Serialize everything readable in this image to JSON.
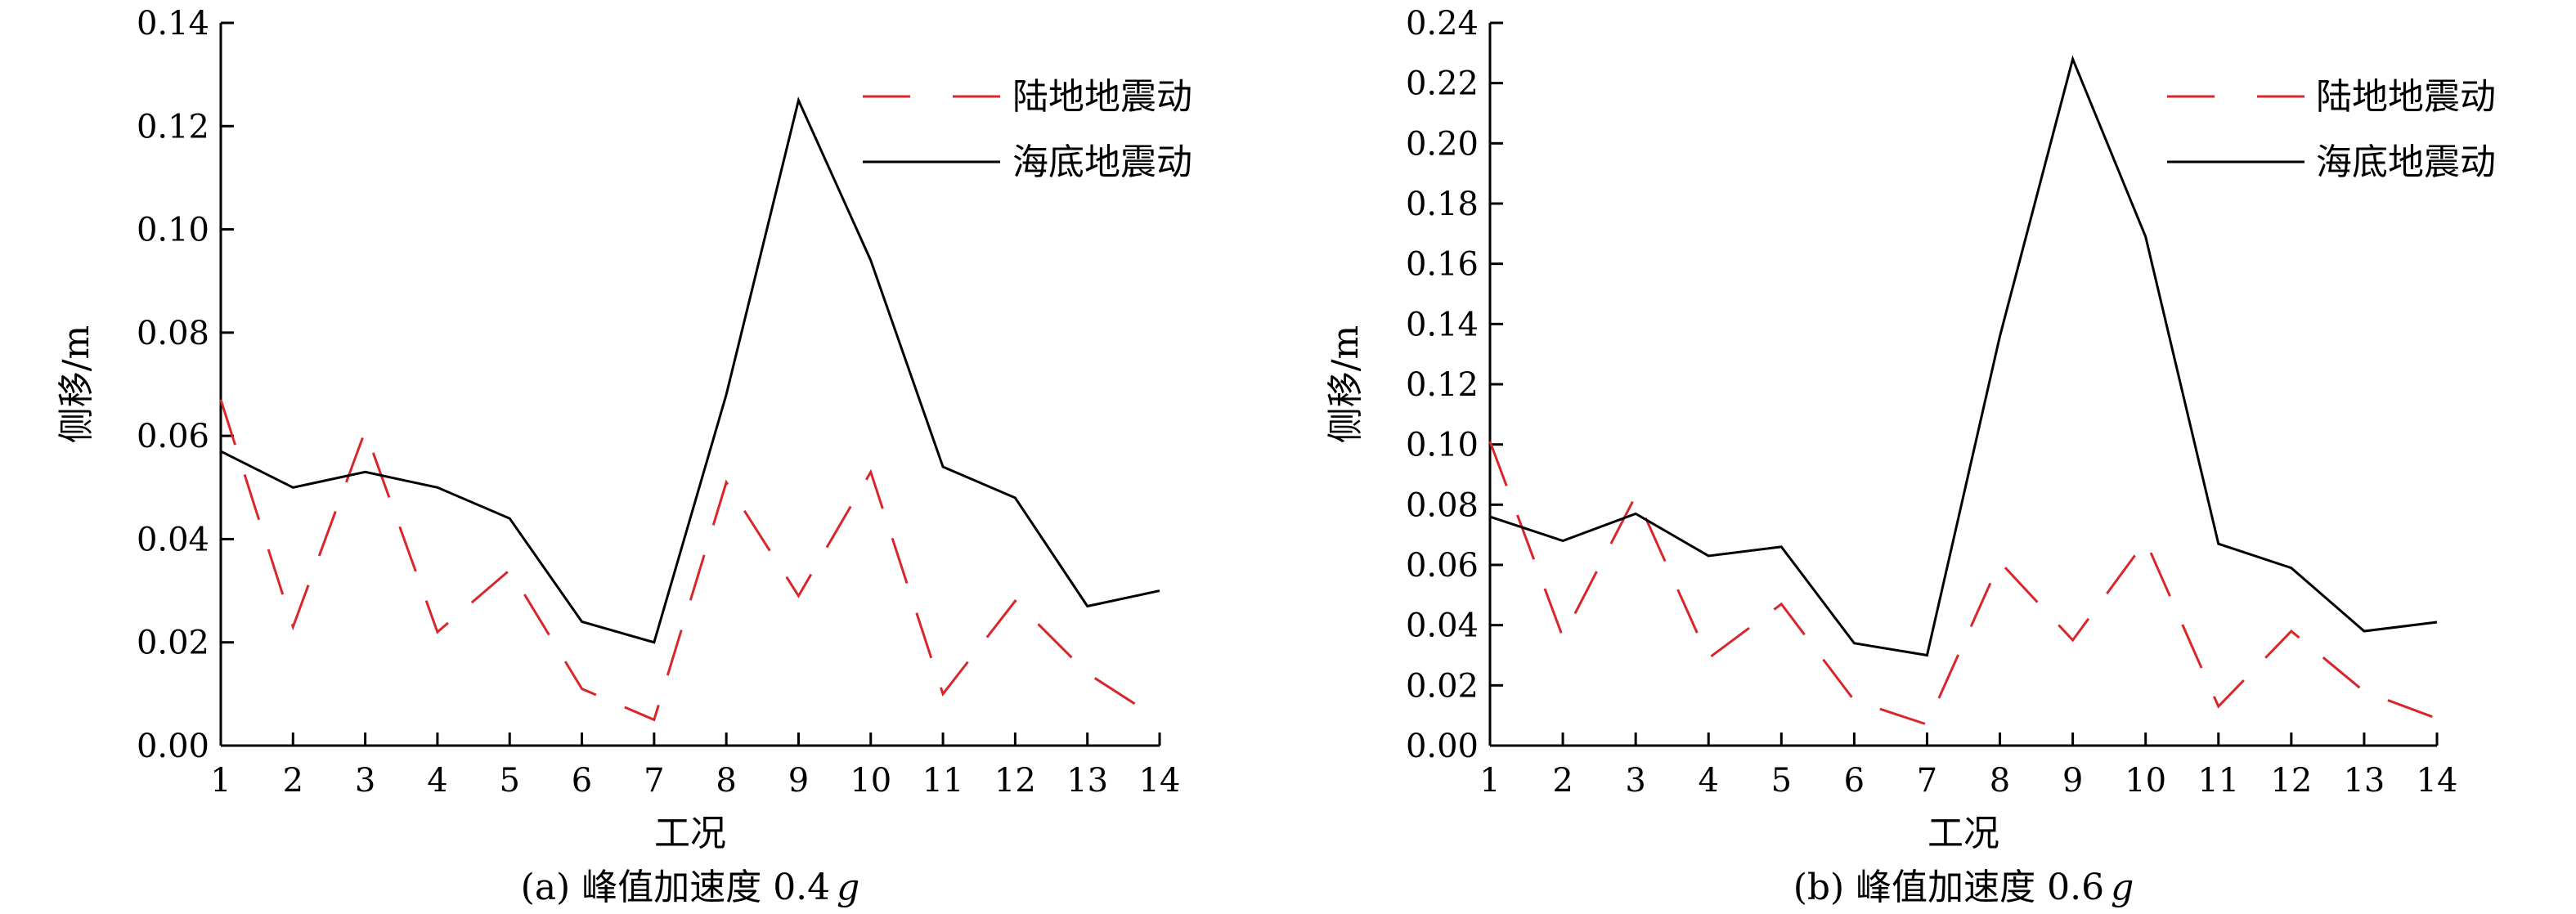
{
  "chart_data": [
    {
      "type": "line",
      "caption": "(a) 峰值加速度 0.4",
      "caption_italic": "g",
      "xlabel": "工况",
      "ylabel": "侧移/m",
      "x": [
        1,
        2,
        3,
        4,
        5,
        6,
        7,
        8,
        9,
        10,
        11,
        12,
        13,
        14
      ],
      "xlim": [
        1,
        14
      ],
      "ylim": [
        0,
        0.14
      ],
      "yticks": [
        "0.00",
        "0.02",
        "0.04",
        "0.06",
        "0.08",
        "0.10",
        "0.12",
        "0.14"
      ],
      "xticks": [
        "1",
        "2",
        "3",
        "4",
        "5",
        "6",
        "7",
        "8",
        "9",
        "10",
        "11",
        "12",
        "13",
        "14"
      ],
      "legend_position": "top-right",
      "series": [
        {
          "name": "陆地地震动",
          "style": "dashed",
          "color": "#d9262b",
          "values": [
            0.067,
            0.023,
            0.061,
            0.022,
            0.034,
            0.011,
            0.005,
            0.051,
            0.029,
            0.053,
            0.01,
            0.028,
            0.014,
            0.005
          ]
        },
        {
          "name": "海底地震动",
          "style": "solid",
          "color": "#000000",
          "values": [
            0.057,
            0.05,
            0.053,
            0.05,
            0.044,
            0.024,
            0.02,
            0.068,
            0.125,
            0.094,
            0.054,
            0.048,
            0.027,
            0.03
          ]
        }
      ]
    },
    {
      "type": "line",
      "caption": "(b) 峰值加速度 0.6",
      "caption_italic": "g",
      "xlabel": "工况",
      "ylabel": "侧移/m",
      "x": [
        1,
        2,
        3,
        4,
        5,
        6,
        7,
        8,
        9,
        10,
        11,
        12,
        13,
        14
      ],
      "xlim": [
        1,
        14
      ],
      "ylim": [
        0,
        0.24
      ],
      "yticks": [
        "0.00",
        "0.02",
        "0.04",
        "0.06",
        "0.08",
        "0.10",
        "0.12",
        "0.14",
        "0.16",
        "0.18",
        "0.20",
        "0.22",
        "0.24"
      ],
      "xticks": [
        "1",
        "2",
        "3",
        "4",
        "5",
        "6",
        "7",
        "8",
        "9",
        "10",
        "11",
        "12",
        "13",
        "14"
      ],
      "legend_position": "top-right",
      "series": [
        {
          "name": "陆地地震动",
          "style": "dashed",
          "color": "#d9262b",
          "values": [
            0.101,
            0.036,
            0.083,
            0.029,
            0.047,
            0.015,
            0.007,
            0.061,
            0.035,
            0.068,
            0.013,
            0.038,
            0.018,
            0.009
          ]
        },
        {
          "name": "海底地震动",
          "style": "solid",
          "color": "#000000",
          "values": [
            0.076,
            0.068,
            0.077,
            0.063,
            0.066,
            0.034,
            0.03,
            0.136,
            0.228,
            0.169,
            0.067,
            0.059,
            0.038,
            0.041
          ]
        }
      ]
    }
  ]
}
